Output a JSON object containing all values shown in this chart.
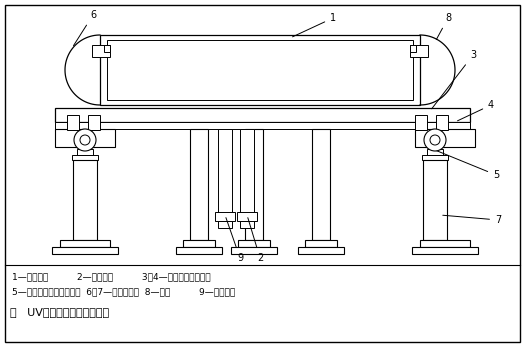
{
  "figure_width": 5.25,
  "figure_height": 3.47,
  "dpi": 100,
  "bg_color": "#ffffff",
  "lc": "#000000",
  "title_text": "图   UV喷绘机打印平台示意图",
  "legend_line1": "1—平台主体          2—风管接头          3、4—平台水平调整机构",
  "legend_line2": "5—平台变形自动调节装置  6、7—弧板调整架  8—弧板          9—水管接头"
}
